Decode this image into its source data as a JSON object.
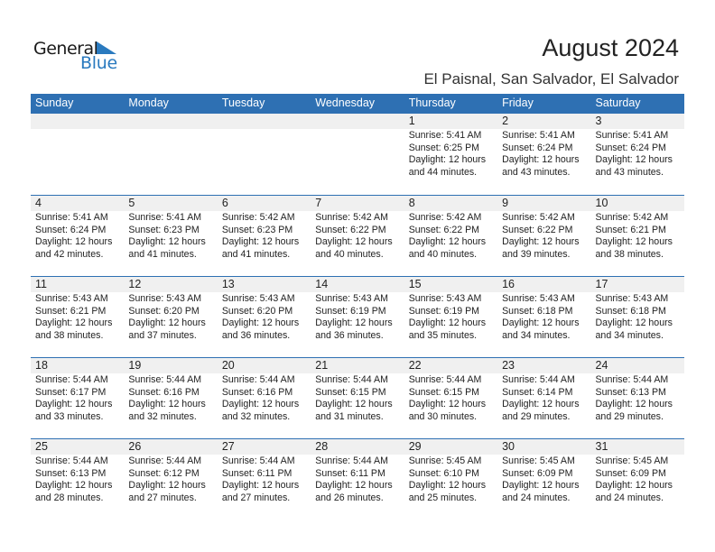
{
  "logo": {
    "text1": "General",
    "text2": "Blue",
    "color": "#2a7abf"
  },
  "title": "August 2024",
  "location": "El Paisnal, San Salvador, El Salvador",
  "header_color": "#2e70b3",
  "weekdays": [
    "Sunday",
    "Monday",
    "Tuesday",
    "Wednesday",
    "Thursday",
    "Friday",
    "Saturday"
  ],
  "weeks": [
    [
      null,
      null,
      null,
      null,
      {
        "day": "1",
        "sunrise": "Sunrise: 5:41 AM",
        "sunset": "Sunset: 6:25 PM",
        "daylight": "Daylight: 12 hours",
        "minutes": "and 44 minutes."
      },
      {
        "day": "2",
        "sunrise": "Sunrise: 5:41 AM",
        "sunset": "Sunset: 6:24 PM",
        "daylight": "Daylight: 12 hours",
        "minutes": "and 43 minutes."
      },
      {
        "day": "3",
        "sunrise": "Sunrise: 5:41 AM",
        "sunset": "Sunset: 6:24 PM",
        "daylight": "Daylight: 12 hours",
        "minutes": "and 43 minutes."
      }
    ],
    [
      {
        "day": "4",
        "sunrise": "Sunrise: 5:41 AM",
        "sunset": "Sunset: 6:24 PM",
        "daylight": "Daylight: 12 hours",
        "minutes": "and 42 minutes."
      },
      {
        "day": "5",
        "sunrise": "Sunrise: 5:41 AM",
        "sunset": "Sunset: 6:23 PM",
        "daylight": "Daylight: 12 hours",
        "minutes": "and 41 minutes."
      },
      {
        "day": "6",
        "sunrise": "Sunrise: 5:42 AM",
        "sunset": "Sunset: 6:23 PM",
        "daylight": "Daylight: 12 hours",
        "minutes": "and 41 minutes."
      },
      {
        "day": "7",
        "sunrise": "Sunrise: 5:42 AM",
        "sunset": "Sunset: 6:22 PM",
        "daylight": "Daylight: 12 hours",
        "minutes": "and 40 minutes."
      },
      {
        "day": "8",
        "sunrise": "Sunrise: 5:42 AM",
        "sunset": "Sunset: 6:22 PM",
        "daylight": "Daylight: 12 hours",
        "minutes": "and 40 minutes."
      },
      {
        "day": "9",
        "sunrise": "Sunrise: 5:42 AM",
        "sunset": "Sunset: 6:22 PM",
        "daylight": "Daylight: 12 hours",
        "minutes": "and 39 minutes."
      },
      {
        "day": "10",
        "sunrise": "Sunrise: 5:42 AM",
        "sunset": "Sunset: 6:21 PM",
        "daylight": "Daylight: 12 hours",
        "minutes": "and 38 minutes."
      }
    ],
    [
      {
        "day": "11",
        "sunrise": "Sunrise: 5:43 AM",
        "sunset": "Sunset: 6:21 PM",
        "daylight": "Daylight: 12 hours",
        "minutes": "and 38 minutes."
      },
      {
        "day": "12",
        "sunrise": "Sunrise: 5:43 AM",
        "sunset": "Sunset: 6:20 PM",
        "daylight": "Daylight: 12 hours",
        "minutes": "and 37 minutes."
      },
      {
        "day": "13",
        "sunrise": "Sunrise: 5:43 AM",
        "sunset": "Sunset: 6:20 PM",
        "daylight": "Daylight: 12 hours",
        "minutes": "and 36 minutes."
      },
      {
        "day": "14",
        "sunrise": "Sunrise: 5:43 AM",
        "sunset": "Sunset: 6:19 PM",
        "daylight": "Daylight: 12 hours",
        "minutes": "and 36 minutes."
      },
      {
        "day": "15",
        "sunrise": "Sunrise: 5:43 AM",
        "sunset": "Sunset: 6:19 PM",
        "daylight": "Daylight: 12 hours",
        "minutes": "and 35 minutes."
      },
      {
        "day": "16",
        "sunrise": "Sunrise: 5:43 AM",
        "sunset": "Sunset: 6:18 PM",
        "daylight": "Daylight: 12 hours",
        "minutes": "and 34 minutes."
      },
      {
        "day": "17",
        "sunrise": "Sunrise: 5:43 AM",
        "sunset": "Sunset: 6:18 PM",
        "daylight": "Daylight: 12 hours",
        "minutes": "and 34 minutes."
      }
    ],
    [
      {
        "day": "18",
        "sunrise": "Sunrise: 5:44 AM",
        "sunset": "Sunset: 6:17 PM",
        "daylight": "Daylight: 12 hours",
        "minutes": "and 33 minutes."
      },
      {
        "day": "19",
        "sunrise": "Sunrise: 5:44 AM",
        "sunset": "Sunset: 6:16 PM",
        "daylight": "Daylight: 12 hours",
        "minutes": "and 32 minutes."
      },
      {
        "day": "20",
        "sunrise": "Sunrise: 5:44 AM",
        "sunset": "Sunset: 6:16 PM",
        "daylight": "Daylight: 12 hours",
        "minutes": "and 32 minutes."
      },
      {
        "day": "21",
        "sunrise": "Sunrise: 5:44 AM",
        "sunset": "Sunset: 6:15 PM",
        "daylight": "Daylight: 12 hours",
        "minutes": "and 31 minutes."
      },
      {
        "day": "22",
        "sunrise": "Sunrise: 5:44 AM",
        "sunset": "Sunset: 6:15 PM",
        "daylight": "Daylight: 12 hours",
        "minutes": "and 30 minutes."
      },
      {
        "day": "23",
        "sunrise": "Sunrise: 5:44 AM",
        "sunset": "Sunset: 6:14 PM",
        "daylight": "Daylight: 12 hours",
        "minutes": "and 29 minutes."
      },
      {
        "day": "24",
        "sunrise": "Sunrise: 5:44 AM",
        "sunset": "Sunset: 6:13 PM",
        "daylight": "Daylight: 12 hours",
        "minutes": "and 29 minutes."
      }
    ],
    [
      {
        "day": "25",
        "sunrise": "Sunrise: 5:44 AM",
        "sunset": "Sunset: 6:13 PM",
        "daylight": "Daylight: 12 hours",
        "minutes": "and 28 minutes."
      },
      {
        "day": "26",
        "sunrise": "Sunrise: 5:44 AM",
        "sunset": "Sunset: 6:12 PM",
        "daylight": "Daylight: 12 hours",
        "minutes": "and 27 minutes."
      },
      {
        "day": "27",
        "sunrise": "Sunrise: 5:44 AM",
        "sunset": "Sunset: 6:11 PM",
        "daylight": "Daylight: 12 hours",
        "minutes": "and 27 minutes."
      },
      {
        "day": "28",
        "sunrise": "Sunrise: 5:44 AM",
        "sunset": "Sunset: 6:11 PM",
        "daylight": "Daylight: 12 hours",
        "minutes": "and 26 minutes."
      },
      {
        "day": "29",
        "sunrise": "Sunrise: 5:45 AM",
        "sunset": "Sunset: 6:10 PM",
        "daylight": "Daylight: 12 hours",
        "minutes": "and 25 minutes."
      },
      {
        "day": "30",
        "sunrise": "Sunrise: 5:45 AM",
        "sunset": "Sunset: 6:09 PM",
        "daylight": "Daylight: 12 hours",
        "minutes": "and 24 minutes."
      },
      {
        "day": "31",
        "sunrise": "Sunrise: 5:45 AM",
        "sunset": "Sunset: 6:09 PM",
        "daylight": "Daylight: 12 hours",
        "minutes": "and 24 minutes."
      }
    ]
  ]
}
